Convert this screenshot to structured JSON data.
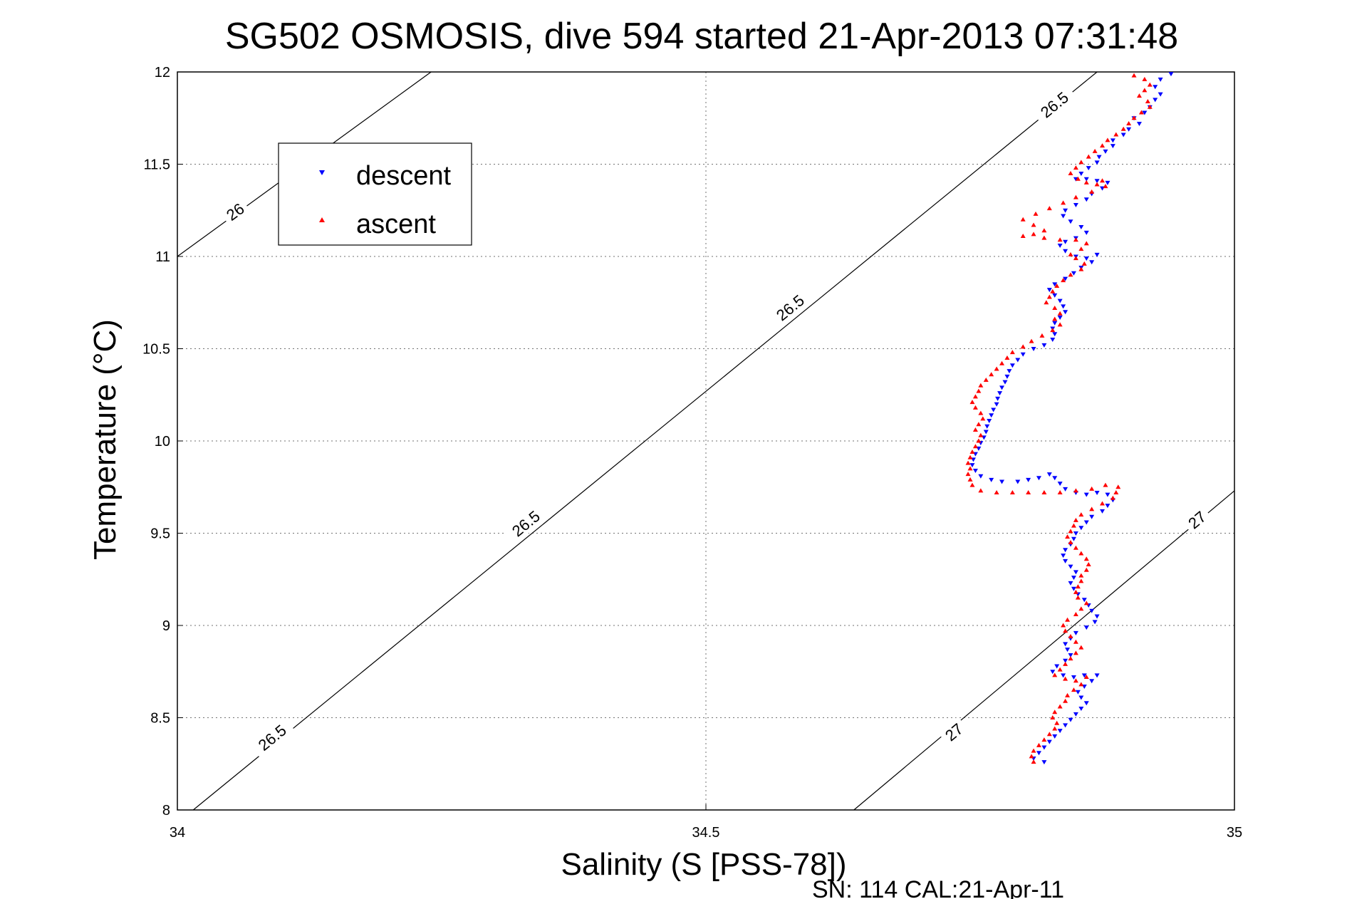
{
  "chart_data": {
    "type": "scatter",
    "title": "SG502 OSMOSIS, dive 594 started 21-Apr-2013 07:31:48",
    "xlabel": "Salinity (S [PSS-78])",
    "ylabel": "Temperature (°C)",
    "xlim": [
      34,
      35
    ],
    "ylim": [
      8,
      12
    ],
    "xticks": [
      "34",
      "34.5",
      "35"
    ],
    "yticks": [
      "8",
      "8.5",
      "9",
      "9.5",
      "10",
      "10.5",
      "11",
      "11.5",
      "12"
    ],
    "grid": true,
    "legend_position": "top-left",
    "footer": "SN: 114  CAL:21-Apr-11",
    "contours": [
      {
        "label": "26",
        "points": [
          [
            34.0,
            11.0
          ],
          [
            34.24,
            12.0
          ]
        ],
        "label_positions": [
          [
            34.055,
            11.24
          ]
        ]
      },
      {
        "label": "26.5",
        "points": [
          [
            34.015,
            8.0
          ],
          [
            34.87,
            12.0
          ]
        ],
        "label_positions": [
          [
            34.09,
            8.39
          ],
          [
            34.33,
            9.55
          ],
          [
            34.58,
            10.72
          ],
          [
            34.83,
            11.82
          ]
        ]
      },
      {
        "label": "27",
        "points": [
          [
            34.64,
            8.0
          ],
          [
            35.0,
            9.73
          ]
        ],
        "label_positions": [
          [
            34.735,
            8.42
          ],
          [
            34.965,
            9.57
          ]
        ]
      }
    ],
    "series": [
      {
        "name": "descent",
        "color": "#0000ff",
        "marker": "down-triangle",
        "points": [
          [
            34.94,
            11.99
          ],
          [
            34.93,
            11.96
          ],
          [
            34.925,
            11.92
          ],
          [
            34.93,
            11.88
          ],
          [
            34.925,
            11.85
          ],
          [
            34.92,
            11.81
          ],
          [
            34.915,
            11.78
          ],
          [
            34.905,
            11.75
          ],
          [
            34.91,
            11.72
          ],
          [
            34.9,
            11.69
          ],
          [
            34.895,
            11.66
          ],
          [
            34.885,
            11.63
          ],
          [
            34.885,
            11.6
          ],
          [
            34.878,
            11.57
          ],
          [
            34.872,
            11.54
          ],
          [
            34.87,
            11.51
          ],
          [
            34.862,
            11.48
          ],
          [
            34.855,
            11.45
          ],
          [
            34.85,
            11.42
          ],
          [
            34.86,
            11.42
          ],
          [
            34.87,
            11.41
          ],
          [
            34.88,
            11.4
          ],
          [
            34.875,
            11.37
          ],
          [
            34.865,
            11.34
          ],
          [
            34.86,
            11.31
          ],
          [
            34.85,
            11.28
          ],
          [
            34.84,
            11.25
          ],
          [
            34.838,
            11.22
          ],
          [
            34.845,
            11.19
          ],
          [
            34.855,
            11.16
          ],
          [
            34.86,
            11.13
          ],
          [
            34.85,
            11.1
          ],
          [
            34.84,
            11.08
          ],
          [
            34.835,
            11.06
          ],
          [
            34.84,
            11.03
          ],
          [
            34.85,
            11.0
          ],
          [
            34.86,
            10.99
          ],
          [
            34.87,
            11.01
          ],
          [
            34.865,
            10.97
          ],
          [
            34.855,
            10.94
          ],
          [
            34.848,
            10.91
          ],
          [
            34.84,
            10.88
          ],
          [
            34.83,
            10.85
          ],
          [
            34.825,
            10.82
          ],
          [
            34.83,
            10.79
          ],
          [
            34.835,
            10.76
          ],
          [
            34.838,
            10.73
          ],
          [
            34.84,
            10.7
          ],
          [
            34.835,
            10.67
          ],
          [
            34.83,
            10.64
          ],
          [
            34.828,
            10.61
          ],
          [
            34.83,
            10.58
          ],
          [
            34.828,
            10.55
          ],
          [
            34.82,
            10.52
          ],
          [
            34.81,
            10.5
          ],
          [
            34.8,
            10.47
          ],
          [
            34.795,
            10.44
          ],
          [
            34.79,
            10.41
          ],
          [
            34.787,
            10.38
          ],
          [
            34.785,
            10.35
          ],
          [
            34.783,
            10.32
          ],
          [
            34.78,
            10.29
          ],
          [
            34.778,
            10.26
          ],
          [
            34.776,
            10.23
          ],
          [
            34.775,
            10.2
          ],
          [
            34.772,
            10.17
          ],
          [
            34.77,
            10.14
          ],
          [
            34.768,
            10.11
          ],
          [
            34.766,
            10.08
          ],
          [
            34.765,
            10.05
          ],
          [
            34.763,
            10.02
          ],
          [
            34.76,
            9.99
          ],
          [
            34.758,
            9.96
          ],
          [
            34.755,
            9.93
          ],
          [
            34.753,
            9.9
          ],
          [
            34.752,
            9.87
          ],
          [
            34.755,
            9.84
          ],
          [
            34.76,
            9.81
          ],
          [
            34.77,
            9.79
          ],
          [
            34.78,
            9.78
          ],
          [
            34.795,
            9.78
          ],
          [
            34.805,
            9.79
          ],
          [
            34.815,
            9.8
          ],
          [
            34.825,
            9.82
          ],
          [
            34.83,
            9.8
          ],
          [
            34.835,
            9.77
          ],
          [
            34.84,
            9.74
          ],
          [
            34.85,
            9.72
          ],
          [
            34.86,
            9.71
          ],
          [
            34.87,
            9.72
          ],
          [
            34.88,
            9.71
          ],
          [
            34.885,
            9.68
          ],
          [
            34.88,
            9.65
          ],
          [
            34.875,
            9.62
          ],
          [
            34.865,
            9.59
          ],
          [
            34.86,
            9.56
          ],
          [
            34.855,
            9.53
          ],
          [
            34.85,
            9.5
          ],
          [
            34.848,
            9.47
          ],
          [
            34.845,
            9.44
          ],
          [
            34.84,
            9.41
          ],
          [
            34.838,
            9.38
          ],
          [
            34.84,
            9.35
          ],
          [
            34.845,
            9.32
          ],
          [
            34.85,
            9.29
          ],
          [
            34.848,
            9.26
          ],
          [
            34.845,
            9.23
          ],
          [
            34.848,
            9.2
          ],
          [
            34.852,
            9.17
          ],
          [
            34.858,
            9.14
          ],
          [
            34.862,
            9.11
          ],
          [
            34.865,
            9.08
          ],
          [
            34.87,
            9.05
          ],
          [
            34.868,
            9.02
          ],
          [
            34.86,
            8.99
          ],
          [
            34.85,
            8.96
          ],
          [
            34.845,
            8.93
          ],
          [
            34.84,
            8.9
          ],
          [
            34.842,
            8.87
          ],
          [
            34.845,
            8.84
          ],
          [
            34.84,
            8.81
          ],
          [
            34.832,
            8.78
          ],
          [
            34.828,
            8.75
          ],
          [
            34.838,
            8.73
          ],
          [
            34.848,
            8.72
          ],
          [
            34.858,
            8.73
          ],
          [
            34.87,
            8.73
          ],
          [
            34.865,
            8.7
          ],
          [
            34.858,
            8.67
          ],
          [
            34.852,
            8.64
          ],
          [
            34.855,
            8.61
          ],
          [
            34.86,
            8.58
          ],
          [
            34.855,
            8.55
          ],
          [
            34.85,
            8.52
          ],
          [
            34.845,
            8.49
          ],
          [
            34.84,
            8.46
          ],
          [
            34.835,
            8.43
          ],
          [
            34.83,
            8.4
          ],
          [
            34.825,
            8.37
          ],
          [
            34.82,
            8.34
          ],
          [
            34.815,
            8.31
          ],
          [
            34.81,
            8.28
          ],
          [
            34.82,
            8.26
          ]
        ]
      },
      {
        "name": "ascent",
        "color": "#ff0000",
        "marker": "up-triangle",
        "points": [
          [
            34.905,
            11.98
          ],
          [
            34.915,
            11.96
          ],
          [
            34.92,
            11.93
          ],
          [
            34.915,
            11.9
          ],
          [
            34.91,
            11.87
          ],
          [
            34.918,
            11.84
          ],
          [
            34.92,
            11.81
          ],
          [
            34.912,
            11.78
          ],
          [
            34.905,
            11.75
          ],
          [
            34.9,
            11.72
          ],
          [
            34.895,
            11.69
          ],
          [
            34.888,
            11.66
          ],
          [
            34.88,
            11.63
          ],
          [
            34.875,
            11.6
          ],
          [
            34.868,
            11.57
          ],
          [
            34.862,
            11.54
          ],
          [
            34.855,
            11.51
          ],
          [
            34.85,
            11.48
          ],
          [
            34.845,
            11.45
          ],
          [
            34.852,
            11.42
          ],
          [
            34.86,
            11.4
          ],
          [
            34.87,
            11.39
          ],
          [
            34.875,
            11.41
          ],
          [
            34.878,
            11.38
          ],
          [
            34.865,
            11.35
          ],
          [
            34.85,
            11.32
          ],
          [
            34.838,
            11.29
          ],
          [
            34.825,
            11.26
          ],
          [
            34.812,
            11.23
          ],
          [
            34.8,
            11.2
          ],
          [
            34.81,
            11.17
          ],
          [
            34.82,
            11.14
          ],
          [
            34.81,
            11.12
          ],
          [
            34.8,
            11.11
          ],
          [
            34.82,
            11.1
          ],
          [
            34.835,
            11.09
          ],
          [
            34.85,
            11.09
          ],
          [
            34.86,
            11.07
          ],
          [
            34.855,
            11.04
          ],
          [
            34.845,
            11.01
          ],
          [
            34.85,
            10.99
          ],
          [
            34.858,
            10.96
          ],
          [
            34.855,
            10.93
          ],
          [
            34.845,
            10.9
          ],
          [
            34.838,
            10.87
          ],
          [
            34.832,
            10.84
          ],
          [
            34.828,
            10.81
          ],
          [
            34.825,
            10.78
          ],
          [
            34.822,
            10.75
          ],
          [
            34.83,
            10.72
          ],
          [
            34.835,
            10.69
          ],
          [
            34.83,
            10.66
          ],
          [
            34.835,
            10.63
          ],
          [
            34.828,
            10.6
          ],
          [
            34.818,
            10.57
          ],
          [
            34.808,
            10.54
          ],
          [
            34.8,
            10.51
          ],
          [
            34.79,
            10.48
          ],
          [
            34.785,
            10.45
          ],
          [
            34.78,
            10.42
          ],
          [
            34.775,
            10.39
          ],
          [
            34.77,
            10.36
          ],
          [
            34.765,
            10.33
          ],
          [
            34.76,
            10.3
          ],
          [
            34.758,
            10.27
          ],
          [
            34.755,
            10.24
          ],
          [
            34.752,
            10.21
          ],
          [
            34.755,
            10.18
          ],
          [
            34.76,
            10.15
          ],
          [
            34.762,
            10.12
          ],
          [
            34.758,
            10.09
          ],
          [
            34.755,
            10.06
          ],
          [
            34.76,
            10.03
          ],
          [
            34.758,
            10.0
          ],
          [
            34.755,
            9.97
          ],
          [
            34.752,
            9.94
          ],
          [
            34.75,
            9.91
          ],
          [
            34.748,
            9.88
          ],
          [
            34.75,
            9.85
          ],
          [
            34.748,
            9.82
          ],
          [
            34.75,
            9.79
          ],
          [
            34.752,
            9.76
          ],
          [
            34.76,
            9.73
          ],
          [
            34.775,
            9.72
          ],
          [
            34.79,
            9.72
          ],
          [
            34.805,
            9.72
          ],
          [
            34.82,
            9.72
          ],
          [
            34.835,
            9.72
          ],
          [
            34.85,
            9.73
          ],
          [
            34.865,
            9.74
          ],
          [
            34.878,
            9.76
          ],
          [
            34.89,
            9.75
          ],
          [
            34.888,
            9.72
          ],
          [
            34.885,
            9.69
          ],
          [
            34.875,
            9.66
          ],
          [
            34.865,
            9.63
          ],
          [
            34.855,
            9.6
          ],
          [
            34.85,
            9.57
          ],
          [
            34.848,
            9.54
          ],
          [
            34.845,
            9.51
          ],
          [
            34.842,
            9.48
          ],
          [
            34.845,
            9.45
          ],
          [
            34.85,
            9.42
          ],
          [
            34.855,
            9.39
          ],
          [
            34.86,
            9.36
          ],
          [
            34.862,
            9.33
          ],
          [
            34.86,
            9.3
          ],
          [
            34.855,
            9.27
          ],
          [
            34.855,
            9.24
          ],
          [
            34.852,
            9.21
          ],
          [
            34.85,
            9.18
          ],
          [
            34.852,
            9.15
          ],
          [
            34.86,
            9.12
          ],
          [
            34.855,
            9.09
          ],
          [
            34.85,
            9.06
          ],
          [
            34.842,
            9.03
          ],
          [
            34.838,
            9.0
          ],
          [
            34.84,
            8.97
          ],
          [
            34.845,
            8.94
          ],
          [
            34.85,
            8.91
          ],
          [
            34.855,
            8.88
          ],
          [
            34.85,
            8.85
          ],
          [
            34.845,
            8.82
          ],
          [
            34.84,
            8.79
          ],
          [
            34.835,
            8.76
          ],
          [
            34.83,
            8.73
          ],
          [
            34.84,
            8.71
          ],
          [
            34.85,
            8.7
          ],
          [
            34.86,
            8.72
          ],
          [
            34.855,
            8.68
          ],
          [
            34.848,
            8.65
          ],
          [
            34.842,
            8.62
          ],
          [
            34.84,
            8.59
          ],
          [
            34.835,
            8.56
          ],
          [
            34.83,
            8.53
          ],
          [
            34.828,
            8.5
          ],
          [
            34.832,
            8.47
          ],
          [
            34.83,
            8.44
          ],
          [
            34.825,
            8.41
          ],
          [
            34.82,
            8.38
          ],
          [
            34.815,
            8.35
          ],
          [
            34.81,
            8.32
          ],
          [
            34.808,
            8.29
          ],
          [
            34.81,
            8.26
          ]
        ]
      }
    ]
  }
}
